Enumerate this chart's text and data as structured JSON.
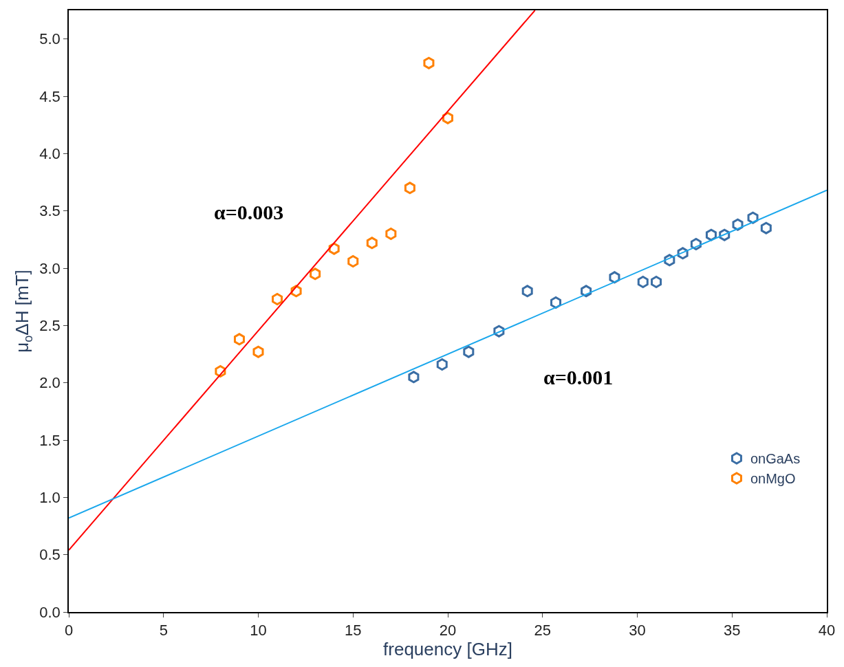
{
  "chart_data": {
    "type": "scatter",
    "xlabel": "frequency [GHz]",
    "ylabel": "μ$_{o}$ΔH [mT]",
    "xlim": [
      0,
      40
    ],
    "xticks": [
      0,
      5,
      10,
      15,
      20,
      25,
      30,
      35,
      40
    ],
    "ylim": [
      0,
      5.25
    ],
    "yticks": [
      {
        "value": 0,
        "label": "0.0"
      },
      {
        "value": 0.5,
        "label": "0.5"
      },
      {
        "value": 1,
        "label": "1.0"
      },
      {
        "value": 1.5,
        "label": "1.5"
      },
      {
        "value": 2,
        "label": "2.0"
      },
      {
        "value": 2.5,
        "label": "2.5"
      },
      {
        "value": 3,
        "label": "3.0"
      },
      {
        "value": 3.5,
        "label": "3.5"
      },
      {
        "value": 4,
        "label": "4.0"
      },
      {
        "value": 4.5,
        "label": "4.5"
      },
      {
        "value": 5,
        "label": "5.0"
      }
    ],
    "legend": "bottom right",
    "series": [
      {
        "name": "onGaAs",
        "color": "#3a6ea5",
        "x": [
          18.2,
          19.7,
          21.1,
          22.7,
          24.2,
          25.7,
          27.3,
          28.8,
          30.3,
          31.0,
          31.7,
          32.4,
          33.1,
          33.9,
          34.6,
          35.3,
          36.1,
          36.8
        ],
        "values": [
          2.05,
          2.16,
          2.27,
          2.45,
          2.8,
          2.7,
          2.8,
          2.92,
          2.88,
          2.88,
          3.07,
          3.13,
          3.21,
          3.29,
          3.29,
          3.38,
          3.44,
          3.35
        ]
      },
      {
        "name": "onMgO",
        "color": "#ff8000",
        "x": [
          8,
          9,
          10,
          11,
          12,
          13,
          14,
          15,
          16,
          17,
          18,
          19,
          20
        ],
        "values": [
          2.1,
          2.38,
          2.27,
          2.73,
          2.8,
          2.95,
          3.17,
          3.06,
          3.22,
          3.3,
          3.7,
          4.79,
          4.31
        ]
      },
      {
        "type": "line",
        "color": "#ff0000",
        "x": [
          0,
          24.6
        ],
        "values": [
          0.54,
          5.25
        ]
      },
      {
        "type": "line",
        "color": "#1aa7ec",
        "x": [
          0,
          40
        ],
        "values": [
          0.82,
          3.68
        ]
      }
    ],
    "annotations": [
      "α=0.003",
      "α=0.001"
    ]
  }
}
